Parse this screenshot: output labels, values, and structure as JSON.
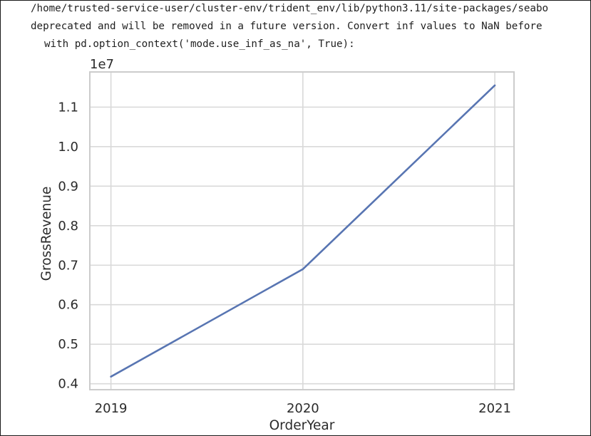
{
  "output": {
    "warning_lines": [
      "/home/trusted-service-user/cluster-env/trident_env/lib/python3.11/site-packages/seabo",
      "deprecated and will be removed in a future version. Convert inf values to NaN before",
      "with pd.option_context('mode.use_inf_as_na', True):"
    ]
  },
  "chart_data": {
    "type": "line",
    "x": [
      2019,
      2020,
      2021
    ],
    "series": [
      {
        "values": [
          4180000,
          6900000,
          11550000
        ]
      }
    ],
    "xlabel": "OrderYear",
    "ylabel": "GrossRevenue",
    "offset_text": "1e7",
    "xticks": [
      "2019",
      "2020",
      "2021"
    ],
    "yticks": [
      "0.4",
      "0.5",
      "0.6",
      "0.7",
      "0.8",
      "0.9",
      "1.0",
      "1.1"
    ],
    "ytick_values": [
      4000000,
      5000000,
      6000000,
      7000000,
      8000000,
      9000000,
      10000000,
      11000000
    ],
    "ylim": [
      3850000,
      11890000
    ],
    "xlim": [
      2018.89,
      2021.1
    ],
    "grid": true,
    "line_color": "#5875b2",
    "grid_color": "#d9d9d9",
    "frame_color": "#cccccc"
  }
}
